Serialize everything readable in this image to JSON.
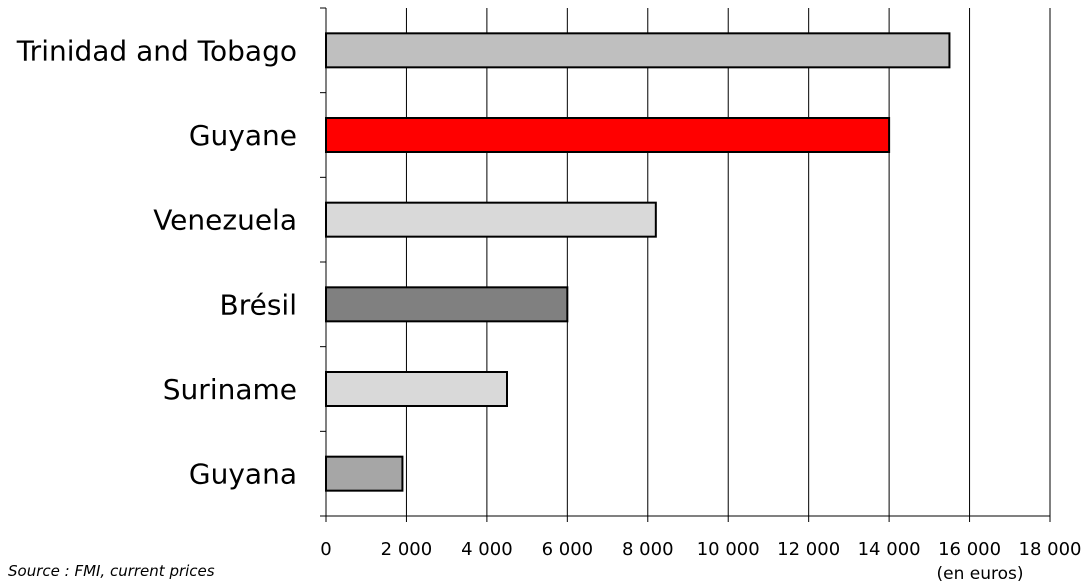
{
  "chart_data": {
    "type": "bar",
    "orientation": "horizontal",
    "categories": [
      "Trinidad and Tobago",
      "Guyane",
      "Venezuela",
      "Brésil",
      "Suriname",
      "Guyana"
    ],
    "values": [
      15500,
      14000,
      8200,
      6000,
      4500,
      1900
    ],
    "colors": [
      "#bfbfbf",
      "#ff0000",
      "#d9d9d9",
      "#808080",
      "#d9d9d9",
      "#a6a6a6"
    ],
    "xlim": [
      0,
      18000
    ],
    "xticks": [
      0,
      2000,
      4000,
      6000,
      8000,
      10000,
      12000,
      14000,
      16000,
      18000
    ],
    "xtick_labels": [
      "0",
      "2 000",
      "4 000",
      "6 000",
      "8 000",
      "10 000",
      "12 000",
      "14 000",
      "16 000",
      "18 000"
    ],
    "xlabel": "(en euros)",
    "grid": "vertical",
    "source": "Source : FMI, current prices"
  }
}
